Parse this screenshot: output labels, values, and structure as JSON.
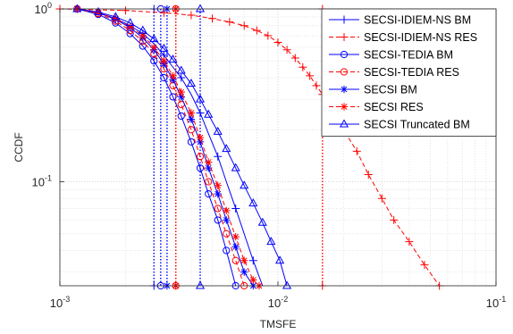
{
  "chart_data": {
    "type": "line",
    "title": "",
    "xlabel": "TMSFE",
    "ylabel": "CCDF",
    "xscale": "log",
    "yscale": "log",
    "xlim": [
      0.001,
      0.1
    ],
    "ylim": [
      0.025,
      1.0
    ],
    "grid": true,
    "legend_position": "top-right",
    "x_ticks": [
      {
        "base": "10",
        "exp": "-3",
        "value": 0.001
      },
      {
        "base": "10",
        "exp": "-2",
        "value": 0.01
      },
      {
        "base": "10",
        "exp": "-1",
        "value": 0.1
      }
    ],
    "y_ticks": [
      {
        "base": "10",
        "exp": "-1",
        "value": 0.1
      },
      {
        "base": "10",
        "exp": "0",
        "value": 1.0
      }
    ],
    "series": [
      {
        "name": "SECSI-IDIEM-NS BM",
        "color": "#0000FF",
        "dash": "solid",
        "marker": "plus",
        "x": [
          0.0012,
          0.0015,
          0.0018,
          0.0021,
          0.0024,
          0.0027,
          0.003,
          0.0033,
          0.0036,
          0.004,
          0.0044,
          0.0048,
          0.0053,
          0.0058,
          0.0064,
          0.007,
          0.0077,
          0.0085
        ],
        "y": [
          1.0,
          0.95,
          0.88,
          0.8,
          0.72,
          0.63,
          0.54,
          0.46,
          0.4,
          0.32,
          0.25,
          0.19,
          0.14,
          0.1,
          0.07,
          0.05,
          0.035,
          0.025
        ],
        "markers_every": 2
      },
      {
        "name": "SECSI-IDIEM-NS RES",
        "color": "#FF0000",
        "dash": "dashed",
        "marker": "plus",
        "x": [
          0.001,
          0.002,
          0.003,
          0.004,
          0.005,
          0.006,
          0.007,
          0.008,
          0.009,
          0.01,
          0.011,
          0.012,
          0.013,
          0.014,
          0.015,
          0.016,
          0.018,
          0.02,
          0.023,
          0.026,
          0.03,
          0.034,
          0.04,
          0.047,
          0.055
        ],
        "y": [
          1.0,
          0.98,
          0.95,
          0.92,
          0.88,
          0.84,
          0.8,
          0.75,
          0.7,
          0.64,
          0.58,
          0.52,
          0.46,
          0.41,
          0.36,
          0.32,
          0.26,
          0.2,
          0.15,
          0.11,
          0.08,
          0.06,
          0.045,
          0.033,
          0.025
        ],
        "markers_every": 1
      },
      {
        "name": "SECSI-TEDIA BM",
        "color": "#0000FF",
        "dash": "solid",
        "marker": "circle",
        "x": [
          0.0012,
          0.0015,
          0.0018,
          0.0021,
          0.0024,
          0.0027,
          0.003,
          0.0033,
          0.0036,
          0.004,
          0.0044,
          0.0048,
          0.0053,
          0.0058,
          0.0064
        ],
        "y": [
          1.0,
          0.93,
          0.83,
          0.72,
          0.61,
          0.5,
          0.4,
          0.31,
          0.24,
          0.17,
          0.12,
          0.085,
          0.06,
          0.04,
          0.025
        ],
        "markers_every": 1
      },
      {
        "name": "SECSI-TEDIA RES",
        "color": "#FF0000",
        "dash": "dashed",
        "marker": "circle",
        "x": [
          0.0012,
          0.0015,
          0.0018,
          0.0021,
          0.0024,
          0.0027,
          0.003,
          0.0033,
          0.0036,
          0.004,
          0.0044,
          0.0048,
          0.0053,
          0.0058,
          0.0064,
          0.007
        ],
        "y": [
          1.0,
          0.94,
          0.85,
          0.75,
          0.65,
          0.55,
          0.45,
          0.36,
          0.28,
          0.2,
          0.14,
          0.1,
          0.07,
          0.05,
          0.035,
          0.025
        ],
        "markers_every": 1
      },
      {
        "name": "SECSI BM",
        "color": "#0000FF",
        "dash": "solid",
        "marker": "asterisk",
        "x": [
          0.0012,
          0.0015,
          0.0018,
          0.0021,
          0.0024,
          0.0027,
          0.003,
          0.0033,
          0.0036,
          0.004,
          0.0044,
          0.0048,
          0.0053,
          0.0058,
          0.0064,
          0.007,
          0.0077
        ],
        "y": [
          1.0,
          0.95,
          0.87,
          0.78,
          0.68,
          0.58,
          0.48,
          0.39,
          0.31,
          0.23,
          0.17,
          0.12,
          0.085,
          0.06,
          0.042,
          0.03,
          0.025
        ],
        "markers_every": 1
      },
      {
        "name": "SECSI RES",
        "color": "#FF0000",
        "dash": "dashed",
        "marker": "asterisk",
        "x": [
          0.0012,
          0.0015,
          0.0018,
          0.0021,
          0.0024,
          0.0027,
          0.003,
          0.0033,
          0.0036,
          0.004,
          0.0044,
          0.0048,
          0.0053,
          0.0058,
          0.0064,
          0.007,
          0.0077,
          0.0082
        ],
        "y": [
          1.0,
          0.95,
          0.88,
          0.79,
          0.7,
          0.6,
          0.5,
          0.41,
          0.33,
          0.25,
          0.18,
          0.13,
          0.095,
          0.068,
          0.048,
          0.035,
          0.027,
          0.025
        ],
        "markers_every": 1
      },
      {
        "name": "SECSI Truncated BM",
        "color": "#0000FF",
        "dash": "solid",
        "marker": "triangle",
        "x": [
          0.0012,
          0.0015,
          0.0018,
          0.0021,
          0.0024,
          0.0027,
          0.003,
          0.0033,
          0.0036,
          0.004,
          0.0044,
          0.0048,
          0.0053,
          0.0058,
          0.0064,
          0.007,
          0.0077,
          0.0085,
          0.0093,
          0.0102,
          0.011
        ],
        "y": [
          1.0,
          0.96,
          0.9,
          0.83,
          0.75,
          0.67,
          0.59,
          0.51,
          0.44,
          0.37,
          0.3,
          0.245,
          0.195,
          0.155,
          0.12,
          0.095,
          0.075,
          0.058,
          0.045,
          0.035,
          0.025
        ],
        "markers_every": 1
      }
    ],
    "vertical_lines": [
      {
        "x": 0.0027,
        "color": "#0000FF",
        "marker": "plus"
      },
      {
        "x": 0.016,
        "color": "#FF0000",
        "marker": "plus"
      },
      {
        "x": 0.0029,
        "color": "#0000FF",
        "marker": "circle"
      },
      {
        "x": 0.0034,
        "color": "#FF0000",
        "marker": "circle"
      },
      {
        "x": 0.0031,
        "color": "#0000FF",
        "marker": "asterisk"
      },
      {
        "x": 0.0034,
        "color": "#FF0000",
        "marker": "asterisk"
      },
      {
        "x": 0.0044,
        "color": "#0000FF",
        "marker": "triangle"
      }
    ]
  }
}
